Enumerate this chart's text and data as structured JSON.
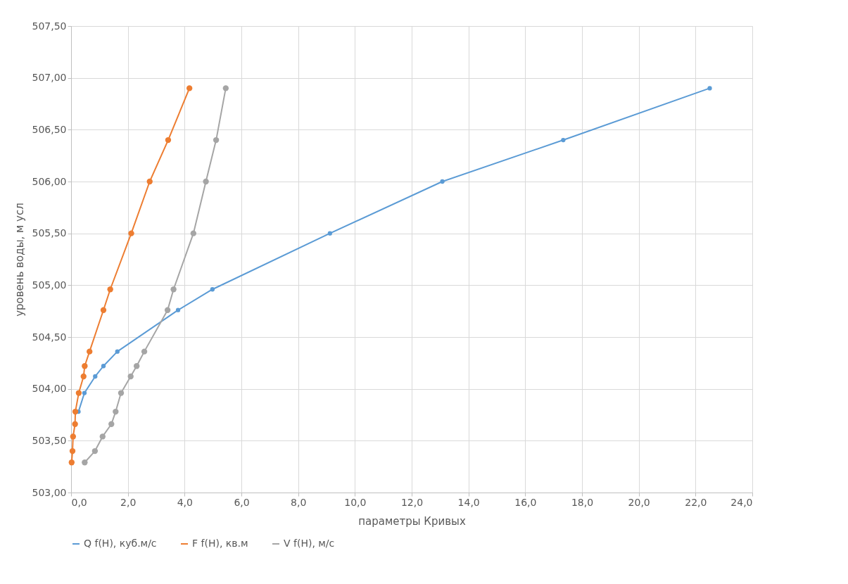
{
  "chart_data": {
    "type": "line",
    "xlabel": "параметры Кривых",
    "ylabel": "уровень воды, м усл",
    "xlim": [
      0,
      24
    ],
    "ylim": [
      503,
      507.5
    ],
    "xticks": [
      {
        "value": 0,
        "label": "0,0"
      },
      {
        "value": 2,
        "label": "2,0"
      },
      {
        "value": 4,
        "label": "4,0"
      },
      {
        "value": 6,
        "label": "6,0"
      },
      {
        "value": 8,
        "label": "8,0"
      },
      {
        "value": 10,
        "label": "10,0"
      },
      {
        "value": 12,
        "label": "12,0"
      },
      {
        "value": 14,
        "label": "14,0"
      },
      {
        "value": 16,
        "label": "16,0"
      },
      {
        "value": 18,
        "label": "18,0"
      },
      {
        "value": 20,
        "label": "20,0"
      },
      {
        "value": 22,
        "label": "22,0"
      },
      {
        "value": 24,
        "label": "24,0"
      }
    ],
    "yticks": [
      {
        "value": 503,
        "label": "503,00"
      },
      {
        "value": 503.5,
        "label": "503,50"
      },
      {
        "value": 504,
        "label": "504,00"
      },
      {
        "value": 504.5,
        "label": "504,50"
      },
      {
        "value": 505,
        "label": "505,00"
      },
      {
        "value": 505.5,
        "label": "505,50"
      },
      {
        "value": 506,
        "label": "506,00"
      },
      {
        "value": 506.5,
        "label": "506,50"
      },
      {
        "value": 507,
        "label": "507,00"
      },
      {
        "value": 507.5,
        "label": "507,50"
      }
    ],
    "grid": true,
    "legend": "bottom",
    "marker": "circle",
    "line_style": "solid",
    "series": [
      {
        "name": "Q f(H), куб.м/с",
        "color": "#5b9bd5",
        "x": [
          null,
          null,
          null,
          null,
          0.26,
          0.47,
          0.85,
          1.14,
          1.63,
          3.77,
          4.98,
          9.12,
          13.08,
          17.34,
          22.5
        ],
        "values": [
          null,
          null,
          null,
          null,
          503.78,
          503.96,
          504.12,
          504.22,
          504.36,
          504.76,
          504.96,
          505.5,
          506.0,
          506.4,
          506.9
        ]
      },
      {
        "name": "F f(H), кв.м",
        "color": "#ed7d31",
        "x": [
          0.02,
          0.05,
          0.07,
          0.14,
          0.15,
          0.27,
          0.44,
          0.48,
          0.65,
          1.14,
          1.38,
          2.12,
          2.77,
          3.42,
          4.17
        ],
        "values": [
          503.29,
          503.4,
          503.54,
          503.66,
          503.78,
          503.96,
          504.12,
          504.22,
          504.36,
          504.76,
          504.96,
          505.5,
          506.0,
          506.4,
          506.9
        ]
      },
      {
        "name": "V f(H), м/с",
        "color": "#a5a5a5",
        "x": [
          0.48,
          0.84,
          1.11,
          1.42,
          1.57,
          1.76,
          2.1,
          2.31,
          2.58,
          3.4,
          3.61,
          4.31,
          4.75,
          5.11,
          5.45
        ],
        "values": [
          503.29,
          503.4,
          503.54,
          503.66,
          503.78,
          503.96,
          504.12,
          504.22,
          504.36,
          504.76,
          504.96,
          505.5,
          506.0,
          506.4,
          506.9
        ]
      }
    ]
  }
}
